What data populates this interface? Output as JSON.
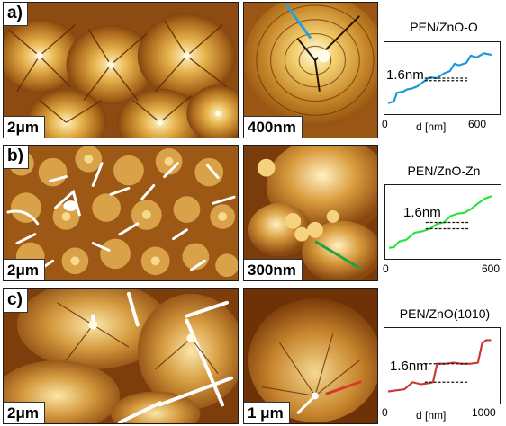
{
  "rows": [
    {
      "label": "a)",
      "scalebar_left": "2μm",
      "scalebar_right": "400nm",
      "title": "PEN/ZnO-O",
      "annotation": "1.6nm",
      "xlabel": "d [nm]",
      "xticks": [
        "0",
        "600"
      ],
      "color": "#1d97d6",
      "line_color": "#1b9be0"
    },
    {
      "label": "b)",
      "scalebar_left": "2μm",
      "scalebar_right": "300nm",
      "title": "PEN/ZnO-Zn",
      "annotation": "1.6nm",
      "xlabel": "d [nm]",
      "xticks": [
        "0",
        "600"
      ],
      "color": "#27e43a",
      "line_color": "#20a040"
    },
    {
      "label": "c)",
      "scalebar_left": "2μm",
      "scalebar_right": "1 μm",
      "title": "PEN/ZnO(10",
      "title_overline": "1",
      "title_end": "0)",
      "annotation": "1.6nm",
      "xlabel": "d [nm]",
      "xticks": [
        "0",
        "1000"
      ],
      "color": "#c83a35",
      "line_color": "#d83a30"
    }
  ],
  "chart_data": [
    {
      "type": "line",
      "title": "PEN/ZnO-O",
      "xlabel": "d [nm]",
      "ylabel": "",
      "xlim": [
        0,
        720
      ],
      "step_height": "1.6nm",
      "x": [
        0,
        40,
        60,
        100,
        130,
        160,
        200,
        250,
        280,
        330,
        380,
        420,
        450,
        480,
        530,
        560,
        600,
        650,
        700
      ],
      "y": [
        0.3,
        0.5,
        1.6,
        1.7,
        2.0,
        2.1,
        2.4,
        3.1,
        3.5,
        3.4,
        4.0,
        4.3,
        5.2,
        5.0,
        5.3,
        6.2,
        6.0,
        6.5,
        6.3
      ]
    },
    {
      "type": "line",
      "title": "PEN/ZnO-Zn",
      "xlabel": "d [nm]",
      "ylabel": "",
      "xlim": [
        0,
        620
      ],
      "step_height": "1.6nm",
      "x": [
        0,
        30,
        60,
        100,
        150,
        200,
        240,
        280,
        320,
        360,
        400,
        440,
        480,
        520,
        560,
        600
      ],
      "y": [
        0.2,
        0.3,
        1.0,
        1.2,
        2.1,
        2.3,
        2.6,
        3.2,
        3.4,
        4.2,
        4.5,
        4.6,
        5.1,
        5.8,
        6.4,
        6.7
      ]
    },
    {
      "type": "line",
      "title": "PEN/ZnO(1010)",
      "xlabel": "d [nm]",
      "ylabel": "",
      "xlim": [
        0,
        1300
      ],
      "step_height": "1.6nm",
      "x": [
        0,
        100,
        200,
        300,
        400,
        500,
        550,
        600,
        700,
        800,
        900,
        950,
        1000,
        1100,
        1150,
        1200,
        1260
      ],
      "y": [
        0.3,
        0.4,
        0.5,
        1.2,
        1.0,
        1.1,
        1.2,
        3.0,
        3.0,
        3.1,
        3.0,
        3.0,
        3.0,
        3.1,
        5.0,
        5.3,
        5.3
      ]
    }
  ]
}
